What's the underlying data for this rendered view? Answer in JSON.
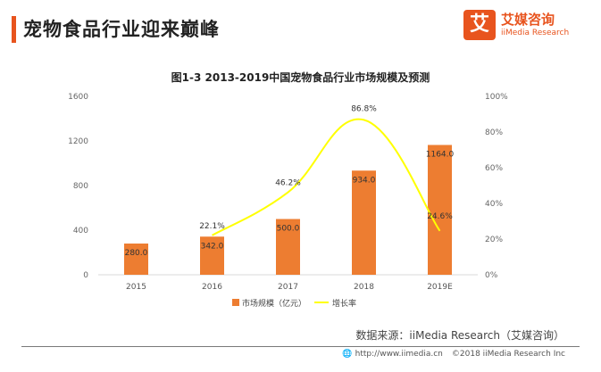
{
  "header": {
    "title": "宠物食品行业迎来巅峰"
  },
  "brand": {
    "logo_char": "艾",
    "name_cn": "艾媒咨询",
    "name_en": "iiMedia Research"
  },
  "chart_data": {
    "type": "bar",
    "title": "图1-3  2013-2019中国宠物食品行业市场规模及预测",
    "categories": [
      "2015",
      "2016",
      "2017",
      "2018",
      "2019E"
    ],
    "series": [
      {
        "name": "市场规模（亿元）",
        "type": "bar",
        "axis": "left",
        "color": "#ed7d31",
        "values": [
          280.0,
          342.0,
          500.0,
          934.0,
          1164.0
        ],
        "labels": [
          "280.0",
          "342.0",
          "500.0",
          "934.0",
          "1164.0"
        ]
      },
      {
        "name": "增长率",
        "type": "line",
        "axis": "right",
        "color": "#ffff00",
        "x": [
          "2016",
          "2017",
          "2018",
          "2019E"
        ],
        "values": [
          22.1,
          46.2,
          86.8,
          24.6
        ],
        "labels": [
          "22.1%",
          "46.2%",
          "86.8%",
          "24.6%"
        ]
      }
    ],
    "y_left": {
      "min": 0,
      "max": 1600,
      "ticks": [
        "0",
        "400",
        "800",
        "1200",
        "1600"
      ]
    },
    "y_right": {
      "min": 0,
      "max": 100,
      "ticks": [
        "0%",
        "20%",
        "40%",
        "60%",
        "80%",
        "100%"
      ]
    },
    "legend_position": "bottom",
    "grid": false
  },
  "footer": {
    "source": "数据来源：iiMedia Research（艾媒咨询）",
    "url": "http://www.iimedia.cn",
    "copyright": "©2018  iiMedia Research  Inc"
  }
}
